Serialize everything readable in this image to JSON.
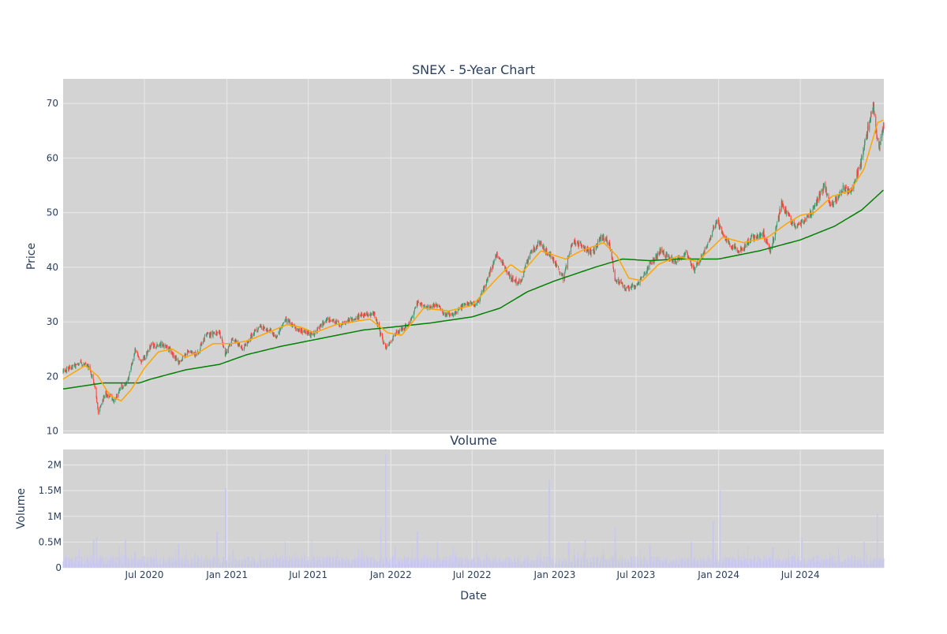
{
  "title": "SNEX - 5-Year Chart",
  "colors": {
    "plot_bg": "#d3d3d3",
    "grid": "#e9e9e9",
    "text": "#2a3f5f",
    "candle_up": "#3d9970",
    "candle_down": "#ff4136",
    "ma_short": "#ffa500",
    "ma_long": "#008000",
    "volume": "#c8c8ee"
  },
  "price_panel": {
    "ylabel": "Price",
    "yticks": [
      10,
      20,
      30,
      40,
      50,
      60,
      70
    ],
    "ylim": [
      9.5,
      74.5
    ]
  },
  "volume_panel": {
    "title": "Volume",
    "ylabel": "Volume",
    "ytick_values": [
      0,
      500000,
      1000000,
      1500000,
      2000000
    ],
    "ytick_labels": [
      "0",
      "0.5M",
      "1M",
      "1.5M",
      "2M"
    ],
    "ylim": [
      0,
      2300000
    ]
  },
  "xaxis": {
    "label": "Date",
    "range": [
      "2020-01-02",
      "2025-01-03"
    ],
    "ticks": [
      {
        "date": "2020-07-01",
        "label": "Jul 2020"
      },
      {
        "date": "2021-01-01",
        "label": "Jan 2021"
      },
      {
        "date": "2021-07-01",
        "label": "Jul 2021"
      },
      {
        "date": "2022-01-01",
        "label": "Jan 2022"
      },
      {
        "date": "2022-07-01",
        "label": "Jul 2022"
      },
      {
        "date": "2023-01-01",
        "label": "Jan 2023"
      },
      {
        "date": "2023-07-01",
        "label": "Jul 2023"
      },
      {
        "date": "2024-01-01",
        "label": "Jan 2024"
      },
      {
        "date": "2024-07-01",
        "label": "Jul 2024"
      }
    ]
  },
  "chart_data": {
    "type": "candlestick",
    "title": "SNEX - 5-Year Chart",
    "xlabel": "Date",
    "ylabel": "Price",
    "price_close_anchors": [
      [
        "2020-01-02",
        21.0
      ],
      [
        "2020-02-10",
        22.5
      ],
      [
        "2020-02-28",
        21.8
      ],
      [
        "2020-03-12",
        18.5
      ],
      [
        "2020-03-20",
        13.5
      ],
      [
        "2020-04-05",
        17.0
      ],
      [
        "2020-04-25",
        15.5
      ],
      [
        "2020-05-10",
        18.0
      ],
      [
        "2020-05-25",
        19.0
      ],
      [
        "2020-06-10",
        25.0
      ],
      [
        "2020-06-25",
        22.5
      ],
      [
        "2020-07-15",
        25.5
      ],
      [
        "2020-08-05",
        26.0
      ],
      [
        "2020-08-25",
        25.0
      ],
      [
        "2020-09-15",
        22.5
      ],
      [
        "2020-10-05",
        24.5
      ],
      [
        "2020-10-25",
        24.0
      ],
      [
        "2020-11-15",
        27.5
      ],
      [
        "2020-12-15",
        28.0
      ],
      [
        "2020-12-28",
        24.0
      ],
      [
        "2021-01-15",
        27.0
      ],
      [
        "2021-02-05",
        25.0
      ],
      [
        "2021-02-25",
        27.5
      ],
      [
        "2021-03-15",
        29.0
      ],
      [
        "2021-04-05",
        28.5
      ],
      [
        "2021-04-20",
        27.0
      ],
      [
        "2021-05-10",
        30.5
      ],
      [
        "2021-06-10",
        28.5
      ],
      [
        "2021-07-10",
        27.5
      ],
      [
        "2021-08-10",
        30.5
      ],
      [
        "2021-09-10",
        29.5
      ],
      [
        "2021-10-20",
        31.0
      ],
      [
        "2021-11-25",
        31.5
      ],
      [
        "2021-12-12",
        27.0
      ],
      [
        "2021-12-20",
        25.0
      ],
      [
        "2022-01-15",
        28.0
      ],
      [
        "2022-02-10",
        29.5
      ],
      [
        "2022-03-01",
        33.5
      ],
      [
        "2022-03-20",
        32.5
      ],
      [
        "2022-04-10",
        33.0
      ],
      [
        "2022-05-01",
        31.5
      ],
      [
        "2022-05-20",
        31.0
      ],
      [
        "2022-06-15",
        33.5
      ],
      [
        "2022-07-10",
        33.0
      ],
      [
        "2022-08-01",
        37.0
      ],
      [
        "2022-08-25",
        42.5
      ],
      [
        "2022-09-25",
        38.0
      ],
      [
        "2022-10-15",
        37.0
      ],
      [
        "2022-11-05",
        42.0
      ],
      [
        "2022-11-25",
        44.5
      ],
      [
        "2022-12-25",
        42.0
      ],
      [
        "2023-01-20",
        38.0
      ],
      [
        "2023-02-10",
        45.0
      ],
      [
        "2023-02-28",
        44.0
      ],
      [
        "2023-03-25",
        42.5
      ],
      [
        "2023-04-15",
        45.5
      ],
      [
        "2023-05-02",
        44.5
      ],
      [
        "2023-05-15",
        38.0
      ],
      [
        "2023-06-10",
        36.0
      ],
      [
        "2023-07-05",
        37.0
      ],
      [
        "2023-08-01",
        40.5
      ],
      [
        "2023-08-25",
        43.0
      ],
      [
        "2023-09-25",
        41.0
      ],
      [
        "2023-10-20",
        42.5
      ],
      [
        "2023-11-08",
        39.5
      ],
      [
        "2023-12-01",
        43.0
      ],
      [
        "2023-12-28",
        48.5
      ],
      [
        "2024-01-25",
        44.0
      ],
      [
        "2024-02-20",
        43.0
      ],
      [
        "2024-03-15",
        45.5
      ],
      [
        "2024-04-10",
        46.0
      ],
      [
        "2024-04-25",
        43.0
      ],
      [
        "2024-05-20",
        51.5
      ],
      [
        "2024-06-20",
        47.0
      ],
      [
        "2024-07-25",
        50.0
      ],
      [
        "2024-08-25",
        55.0
      ],
      [
        "2024-09-05",
        51.0
      ],
      [
        "2024-10-05",
        54.5
      ],
      [
        "2024-10-25",
        54.0
      ],
      [
        "2024-11-15",
        60.0
      ],
      [
        "2024-11-30",
        66.0
      ],
      [
        "2024-12-10",
        69.5
      ],
      [
        "2024-12-22",
        61.5
      ],
      [
        "2025-01-03",
        65.5
      ]
    ],
    "ma_short_anchors": [
      [
        "2020-01-02",
        19.5
      ],
      [
        "2020-02-20",
        22.0
      ],
      [
        "2020-03-20",
        20.0
      ],
      [
        "2020-04-15",
        16.5
      ],
      [
        "2020-05-10",
        15.5
      ],
      [
        "2020-06-01",
        17.5
      ],
      [
        "2020-07-01",
        21.5
      ],
      [
        "2020-08-01",
        24.5
      ],
      [
        "2020-09-01",
        25.0
      ],
      [
        "2020-10-01",
        23.5
      ],
      [
        "2020-11-01",
        24.5
      ],
      [
        "2020-12-01",
        26.0
      ],
      [
        "2021-01-10",
        26.0
      ],
      [
        "2021-02-15",
        26.5
      ],
      [
        "2021-04-01",
        28.0
      ],
      [
        "2021-05-15",
        29.5
      ],
      [
        "2021-06-15",
        29.0
      ],
      [
        "2021-07-15",
        28.0
      ],
      [
        "2021-09-01",
        29.5
      ],
      [
        "2021-11-15",
        30.5
      ],
      [
        "2021-12-25",
        28.0
      ],
      [
        "2022-01-25",
        27.5
      ],
      [
        "2022-03-15",
        32.5
      ],
      [
        "2022-05-10",
        32.0
      ],
      [
        "2022-07-01",
        33.0
      ],
      [
        "2022-08-20",
        37.5
      ],
      [
        "2022-09-25",
        40.5
      ],
      [
        "2022-10-20",
        39.0
      ],
      [
        "2022-12-01",
        43.0
      ],
      [
        "2023-01-25",
        41.5
      ],
      [
        "2023-03-01",
        43.0
      ],
      [
        "2023-04-20",
        44.5
      ],
      [
        "2023-05-20",
        42.0
      ],
      [
        "2023-06-15",
        38.0
      ],
      [
        "2023-07-15",
        37.5
      ],
      [
        "2023-08-20",
        40.5
      ],
      [
        "2023-10-01",
        42.0
      ],
      [
        "2023-11-15",
        41.0
      ],
      [
        "2024-01-10",
        45.5
      ],
      [
        "2024-02-25",
        44.5
      ],
      [
        "2024-04-20",
        45.5
      ],
      [
        "2024-06-01",
        48.0
      ],
      [
        "2024-07-01",
        49.5
      ],
      [
        "2024-08-01",
        50.0
      ],
      [
        "2024-09-10",
        53.0
      ],
      [
        "2024-10-20",
        54.0
      ],
      [
        "2024-11-20",
        58.0
      ],
      [
        "2024-12-20",
        66.5
      ],
      [
        "2025-01-03",
        67.0
      ]
    ],
    "ma_long_anchors": [
      [
        "2020-01-02",
        17.7
      ],
      [
        "2020-04-01",
        18.8
      ],
      [
        "2020-06-20",
        18.8
      ],
      [
        "2020-07-15",
        19.5
      ],
      [
        "2020-10-01",
        21.2
      ],
      [
        "2020-12-15",
        22.2
      ],
      [
        "2021-02-15",
        24.0
      ],
      [
        "2021-05-01",
        25.5
      ],
      [
        "2021-08-01",
        27.0
      ],
      [
        "2021-11-01",
        28.5
      ],
      [
        "2022-01-01",
        29.0
      ],
      [
        "2022-04-01",
        29.8
      ],
      [
        "2022-07-01",
        30.9
      ],
      [
        "2022-09-01",
        32.5
      ],
      [
        "2022-11-01",
        35.5
      ],
      [
        "2023-01-01",
        37.5
      ],
      [
        "2023-04-01",
        40.0
      ],
      [
        "2023-06-01",
        41.5
      ],
      [
        "2023-08-01",
        41.2
      ],
      [
        "2023-10-01",
        41.5
      ],
      [
        "2024-01-01",
        41.5
      ],
      [
        "2024-04-01",
        43.0
      ],
      [
        "2024-07-01",
        45.0
      ],
      [
        "2024-09-15",
        47.5
      ],
      [
        "2024-11-15",
        50.5
      ],
      [
        "2025-01-03",
        54.2
      ]
    ],
    "volume_spikes": [
      [
        "2020-03-10",
        550000
      ],
      [
        "2020-03-16",
        600000
      ],
      [
        "2020-05-20",
        550000
      ],
      [
        "2020-06-10",
        300000
      ],
      [
        "2020-09-15",
        450000
      ],
      [
        "2020-12-10",
        700000
      ],
      [
        "2020-12-29",
        1550000
      ],
      [
        "2021-01-15",
        350000
      ],
      [
        "2021-03-15",
        250000
      ],
      [
        "2021-05-10",
        500000
      ],
      [
        "2021-07-10",
        550000
      ],
      [
        "2021-12-10",
        800000
      ],
      [
        "2021-12-20",
        2200000
      ],
      [
        "2022-01-10",
        400000
      ],
      [
        "2022-03-01",
        700000
      ],
      [
        "2022-04-15",
        500000
      ],
      [
        "2022-07-10",
        550000
      ],
      [
        "2022-12-20",
        1700000
      ],
      [
        "2023-02-01",
        500000
      ],
      [
        "2023-03-10",
        550000
      ],
      [
        "2023-05-15",
        800000
      ],
      [
        "2023-08-01",
        450000
      ],
      [
        "2023-11-01",
        500000
      ],
      [
        "2023-12-20",
        900000
      ],
      [
        "2024-01-05",
        1500000
      ],
      [
        "2024-05-01",
        400000
      ],
      [
        "2024-07-05",
        600000
      ],
      [
        "2024-11-20",
        500000
      ],
      [
        "2024-12-20",
        1050000
      ]
    ]
  }
}
